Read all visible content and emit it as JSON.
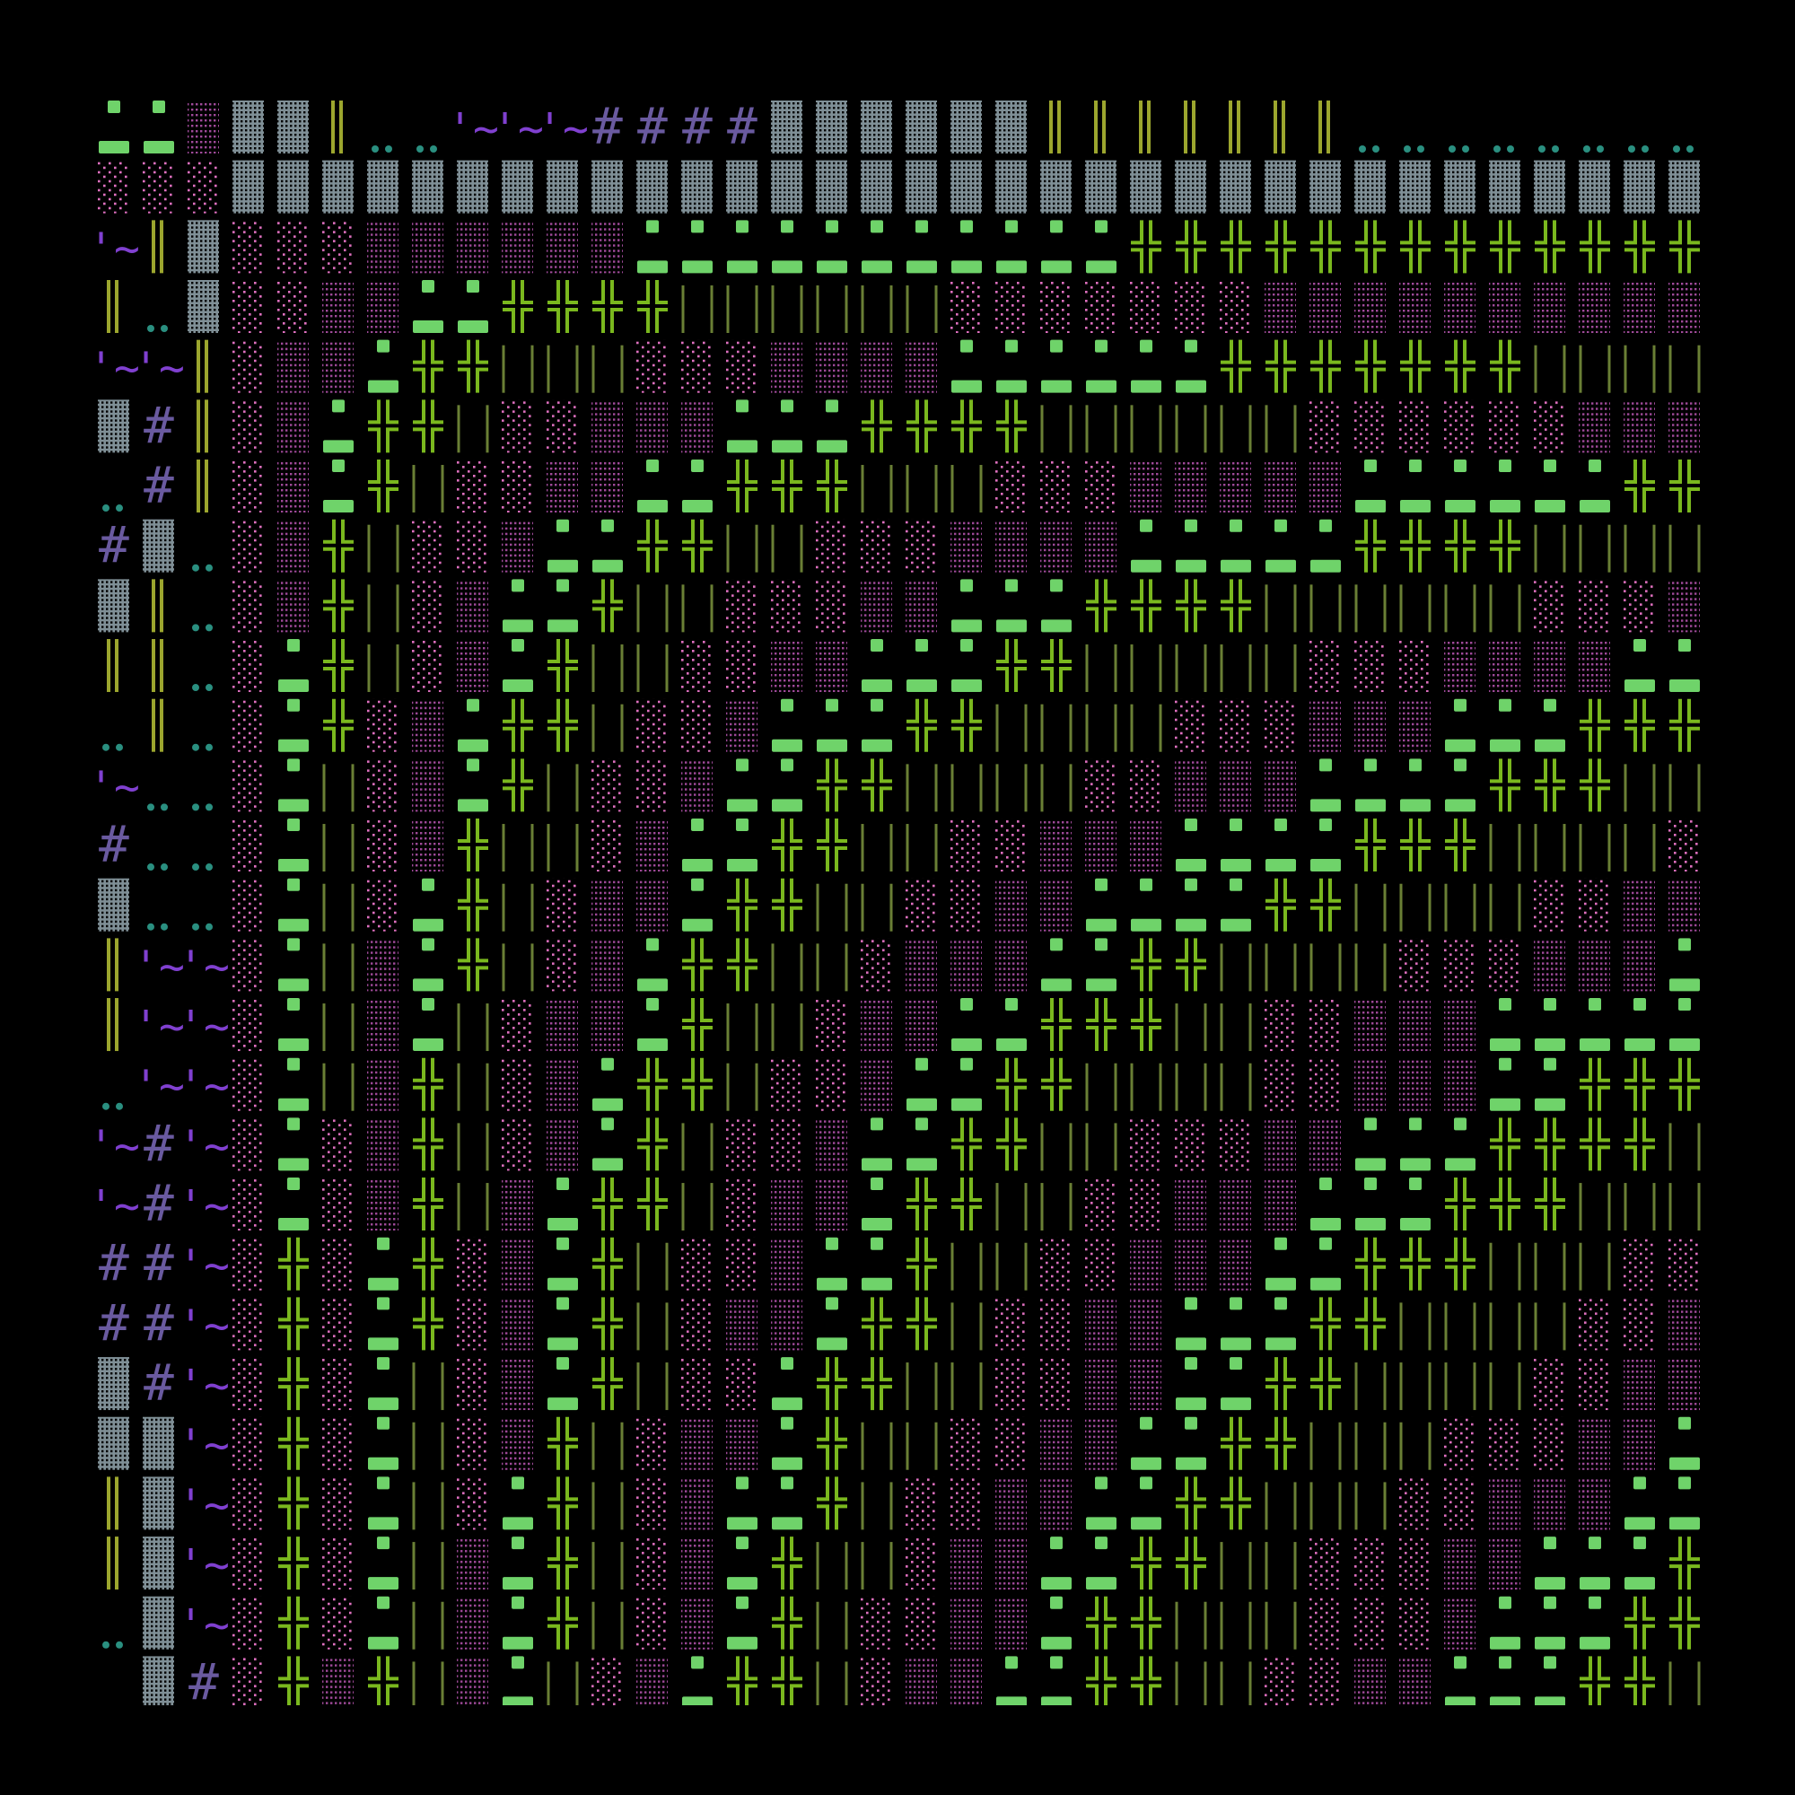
{
  "background": "#000000",
  "glyphs": {
    "G": {
      "name": "dark-shade-block",
      "char": "▓",
      "color": "#7f8f96"
    },
    "P": {
      "name": "light-shade-block",
      "char": "░",
      "color": "#e070c0"
    },
    "V": {
      "name": "medium-shade-block",
      "char": "▒",
      "color": "#a04a9a"
    },
    "B": {
      "name": "green-quadrant-block",
      "char": "▄",
      "color": "#6fd36a"
    },
    "X": {
      "name": "double-cross",
      "char": "╬",
      "color": "#7ab81e"
    },
    "L": {
      "name": "thin-vertical-bars",
      "char": "│",
      "color": "#6a7f35"
    },
    "D": {
      "name": "double-vertical-bar",
      "char": "║",
      "color": "#9ca62e"
    },
    "o": {
      "name": "teal-dots",
      "char": "..",
      "color": "#2a8f80"
    },
    "T": {
      "name": "tilde-quote",
      "char": "'~",
      "color": "#8040d0"
    },
    "H": {
      "name": "hash",
      "char": "#",
      "color": "#6a5aa0"
    },
    ".": {
      "name": "blank",
      "char": " ",
      "color": "#000000"
    }
  },
  "grid": [
    "BBVGGDooTTTHHHHGGGGGGDDDDDDDoooooooo",
    "PPPGGGGGGGGGGGGGGGGGGGGGGGGGGGGGGGGG",
    "TDGPPPVVVVVVBBBBBBBBBBBXXXXXXXXXXXXX",
    "DoGPPVVBBXXXXLLLLLLPPPPPPPVVVVVVVVVV",
    "TTDPVVBXXLLLPPPVVVVBBBBBBXXXXXXXLLLL",
    "GHDPVBXXLPPVVVBBBXXXXLLLLLLPPPPPPVVV",
    "oHDPVBXLPPVVBBXXXLLLPPPVVVVVBBBBBBXX",
    "HGoPVXLPPVBBXXLLPPPVVVVBBBBBXXXXLLLL",
    "GDoPVXLPVBBXLLPPPVVBBBXXXXLLLLLLPPPV",
    "DDoPBXLPVBXLLPPVVBBBXXLLLLLPPPVVVVBB",
    "oDoPBXPVBXXLPPVBBBXXLLLLPPPVVVBBBXXX",
    "TooPBLPVBXLPPVBBXXLLLLPPVVVBBBBXXXLL",
    "HooPBLPVXLLPVBBXXLLPPVVVBBBBXXXLLLLP",
    "GooPBLPBXLPVVBXXLLPPVVBBBBXXLLLLPPVV",
    "DTTPBLVBXLPVBXXLLPVVVBBXXLLLLPPPVVVB",
    "DTTPBLVBLPVVBXLLPVVBBXXXLLPPVVVBBBBB",
    "oTTPBLVXLPVBXXLPPVBBXXLLLLPPVVVBBXXX",
    "THTPBPVXLPVBXLPPVBBXXLLPPPVVBBBXXXXL",
    "THTPBPVXLVBXXLPVVBXXLLPPVVVBBBXXXLLL",
    "HHTPXPBXPVBXLPPVBBXLLPPVVVBBXXXLLLPP",
    "HHTPXPBXPVBXLPVVBXXLPPVVBBBXXLLLLPPV",
    "GHTPXPBLPVBXLPPBXXLLPPVVBBXXLLLLPPVV",
    "GGTPXPBLPVXLPVVBXLLPPVVBBXXLLLPPPVVB",
    "DGTPXPBLPBXLPVBBXLPPVVBBXXLLLPPVVVBB",
    "DGTPXPBLVBXLPVBXLLPVVBBXXLLPPPVVBBBX",
    "oGTPXPBLVBXLPVBXLPPVVBXXLLLPPPVBBBXX",
    ".GHPXVXLVBLPVBXXLPVVBBXXLLPPVVBBBXXL"
  ]
}
